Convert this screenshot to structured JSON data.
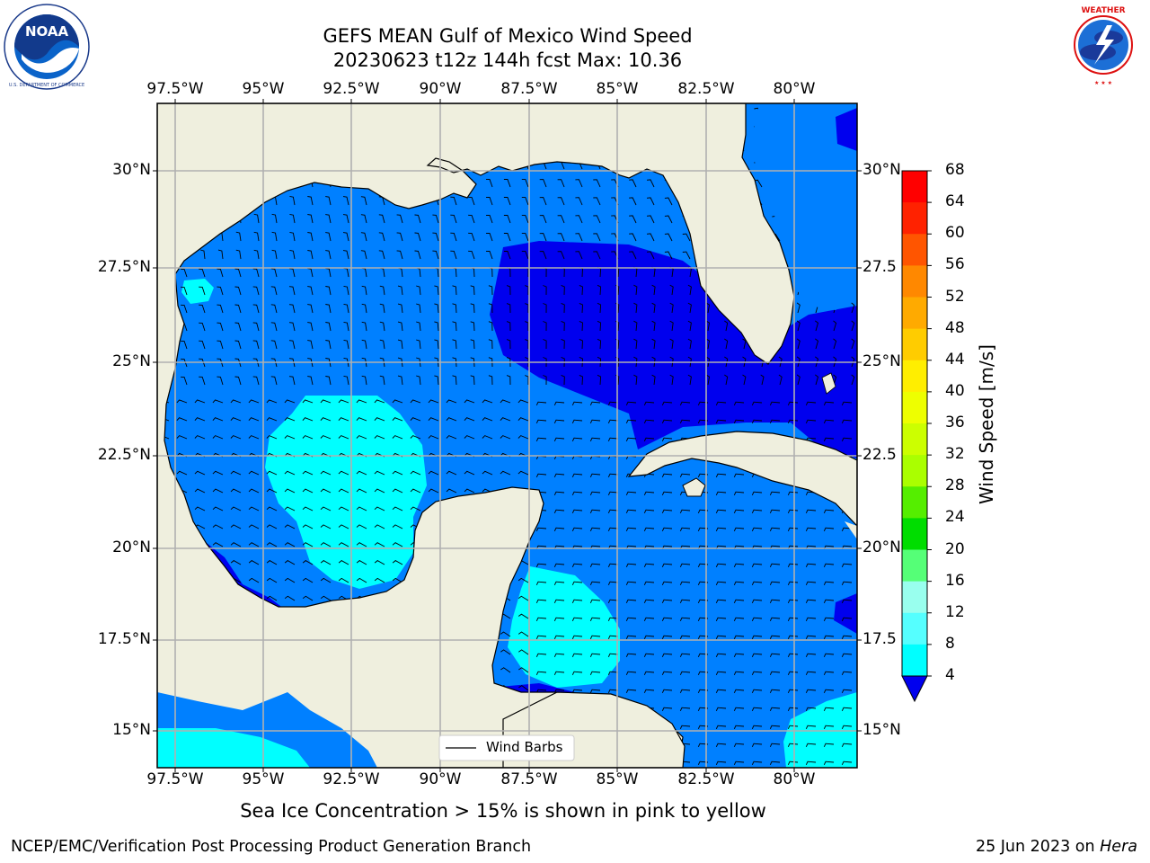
{
  "title_line1": "GEFS MEAN Gulf of Mexico Wind Speed",
  "title_line2": "20230623 t12z 144h fcst   Max: 10.36",
  "lon_labels": [
    "97.5°W",
    "95°W",
    "92.5°W",
    "90°W",
    "87.5°W",
    "85°W",
    "82.5°W",
    "80°W"
  ],
  "lat_labels_left": [
    "30°N",
    "27.5°N",
    "25°N",
    "22.5°N",
    "20°N",
    "17.5°N",
    "15°N"
  ],
  "lat_labels_right": [
    "30°N",
    "27.5",
    "25°N",
    "22.5",
    "20°N",
    "17.5",
    "15°N"
  ],
  "legend_label": "Wind Barbs",
  "colorbar": {
    "label": "Wind Speed [m/s]",
    "ticks": [
      "68",
      "64",
      "60",
      "56",
      "52",
      "48",
      "44",
      "40",
      "36",
      "32",
      "28",
      "24",
      "20",
      "16",
      "12",
      "8",
      "4"
    ],
    "colors": [
      "#ff0000",
      "#ff2200",
      "#ff5500",
      "#ff8800",
      "#ffaa00",
      "#ffcc00",
      "#ffee00",
      "#eeff00",
      "#ccff00",
      "#aaff00",
      "#55ee00",
      "#00dd00",
      "#55ff77",
      "#99ffee",
      "#55ffff",
      "#00ffff",
      "#0080ff"
    ],
    "extend_color": "#0000ee"
  },
  "sea_ice_note": "Sea Ice Concentration > 15% is shown in pink to yellow",
  "credit_left": "NCEP/EMC/Verification Post Processing Product Generation Branch",
  "credit_date": "25 Jun 2023 on ",
  "credit_machine": "Hera",
  "logos": {
    "left": {
      "name": "NOAA",
      "ring_text": "NATIONAL OCEANIC AND ATMOSPHERIC ADMINISTRATION · U.S. DEPARTMENT OF COMMERCE"
    },
    "right": {
      "name": "NATIONAL WEATHER SERVICE"
    }
  },
  "map_colors": {
    "land": "#efefde",
    "ocean_4_8": "#0080ff",
    "ocean_lt4": "#0000ee",
    "ocean_8_12": "#00ffff",
    "grid": "#b0b0b0"
  }
}
